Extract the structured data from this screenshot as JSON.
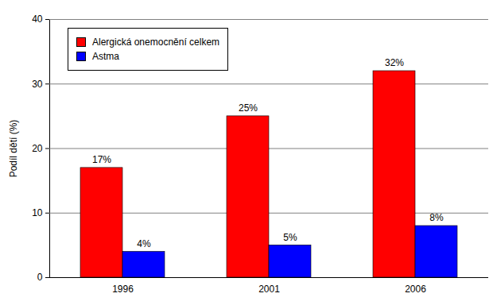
{
  "chart_data": {
    "type": "bar",
    "categories": [
      "1996",
      "2001",
      "2006"
    ],
    "series": [
      {
        "name": "Alergická onemocnění celkem",
        "color": "#ff0000",
        "values": [
          17,
          25,
          32
        ],
        "value_labels": [
          "17%",
          "25%",
          "32%"
        ]
      },
      {
        "name": "Astma",
        "color": "#0000ff",
        "values": [
          4,
          5,
          8
        ],
        "value_labels": [
          "4%",
          "5%",
          "8%"
        ]
      }
    ],
    "ylabel": "Podíl dětí (%)",
    "ylim": [
      0,
      40
    ],
    "yticks": [
      0,
      10,
      20,
      30,
      40
    ],
    "grid": true,
    "data_labels": true,
    "legend": "top-left"
  }
}
